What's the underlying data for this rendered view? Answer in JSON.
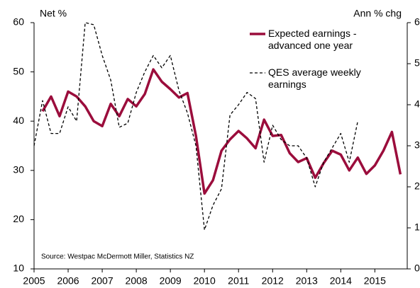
{
  "chart_data": {
    "type": "line",
    "y_label": "Net %",
    "y2_label": "Ann % chg",
    "source": "Source: Westpac McDermott Miller, Statistics NZ",
    "x": [
      2005.0,
      2005.25,
      2005.5,
      2005.75,
      2006.0,
      2006.25,
      2006.5,
      2006.75,
      2007.0,
      2007.25,
      2007.5,
      2007.75,
      2008.0,
      2008.25,
      2008.5,
      2008.75,
      2009.0,
      2009.25,
      2009.5,
      2009.75,
      2010.0,
      2010.25,
      2010.5,
      2010.75,
      2011.0,
      2011.25,
      2011.5,
      2011.75,
      2012.0,
      2012.25,
      2012.5,
      2012.75,
      2013.0,
      2013.25,
      2013.5,
      2013.75,
      2014.0,
      2014.25,
      2014.5,
      2014.75,
      2015.0,
      2015.25,
      2015.5,
      2015.75
    ],
    "series": [
      {
        "name": "Expected earnings - advanced one year",
        "color": "#9b0d3c",
        "dashed": false,
        "axis": "y",
        "values": [
          null,
          42,
          45,
          41,
          46,
          45,
          43,
          40,
          39,
          43.5,
          41,
          44.5,
          43,
          45.5,
          50.5,
          48,
          46.5,
          44.8,
          45.7,
          37,
          25.3,
          28,
          34,
          36.3,
          38,
          36.5,
          34.5,
          40.3,
          37,
          37.2,
          33.5,
          31.7,
          32.5,
          28.5,
          31.5,
          34,
          33.2,
          30,
          32.6,
          29.3,
          31,
          34,
          37.8,
          29.2
        ]
      },
      {
        "name": "QES average weekly earnings",
        "color": "#000000",
        "dashed": true,
        "axis": "y2",
        "values": [
          3.0,
          4.1,
          3.3,
          3.3,
          3.95,
          3.6,
          6.0,
          5.95,
          5.2,
          4.6,
          3.45,
          3.55,
          4.3,
          4.8,
          5.2,
          4.9,
          5.2,
          4.35,
          3.8,
          3.0,
          0.95,
          1.55,
          1.95,
          3.75,
          4.0,
          4.3,
          4.15,
          2.6,
          3.5,
          3.15,
          3.0,
          3.0,
          2.7,
          2.0,
          2.6,
          2.95,
          3.3,
          2.6,
          3.6,
          null,
          null,
          null,
          null,
          null
        ]
      }
    ],
    "xlim": [
      2005,
      2015.95
    ],
    "xticks": [
      2005,
      2006,
      2007,
      2008,
      2009,
      2010,
      2011,
      2012,
      2013,
      2014,
      2015
    ],
    "ylim": [
      10,
      60
    ],
    "yticks": [
      10,
      20,
      30,
      40,
      50,
      60
    ],
    "y2lim": [
      0,
      6
    ],
    "y2ticks": [
      0,
      1,
      2,
      3,
      4,
      5,
      6
    ]
  }
}
